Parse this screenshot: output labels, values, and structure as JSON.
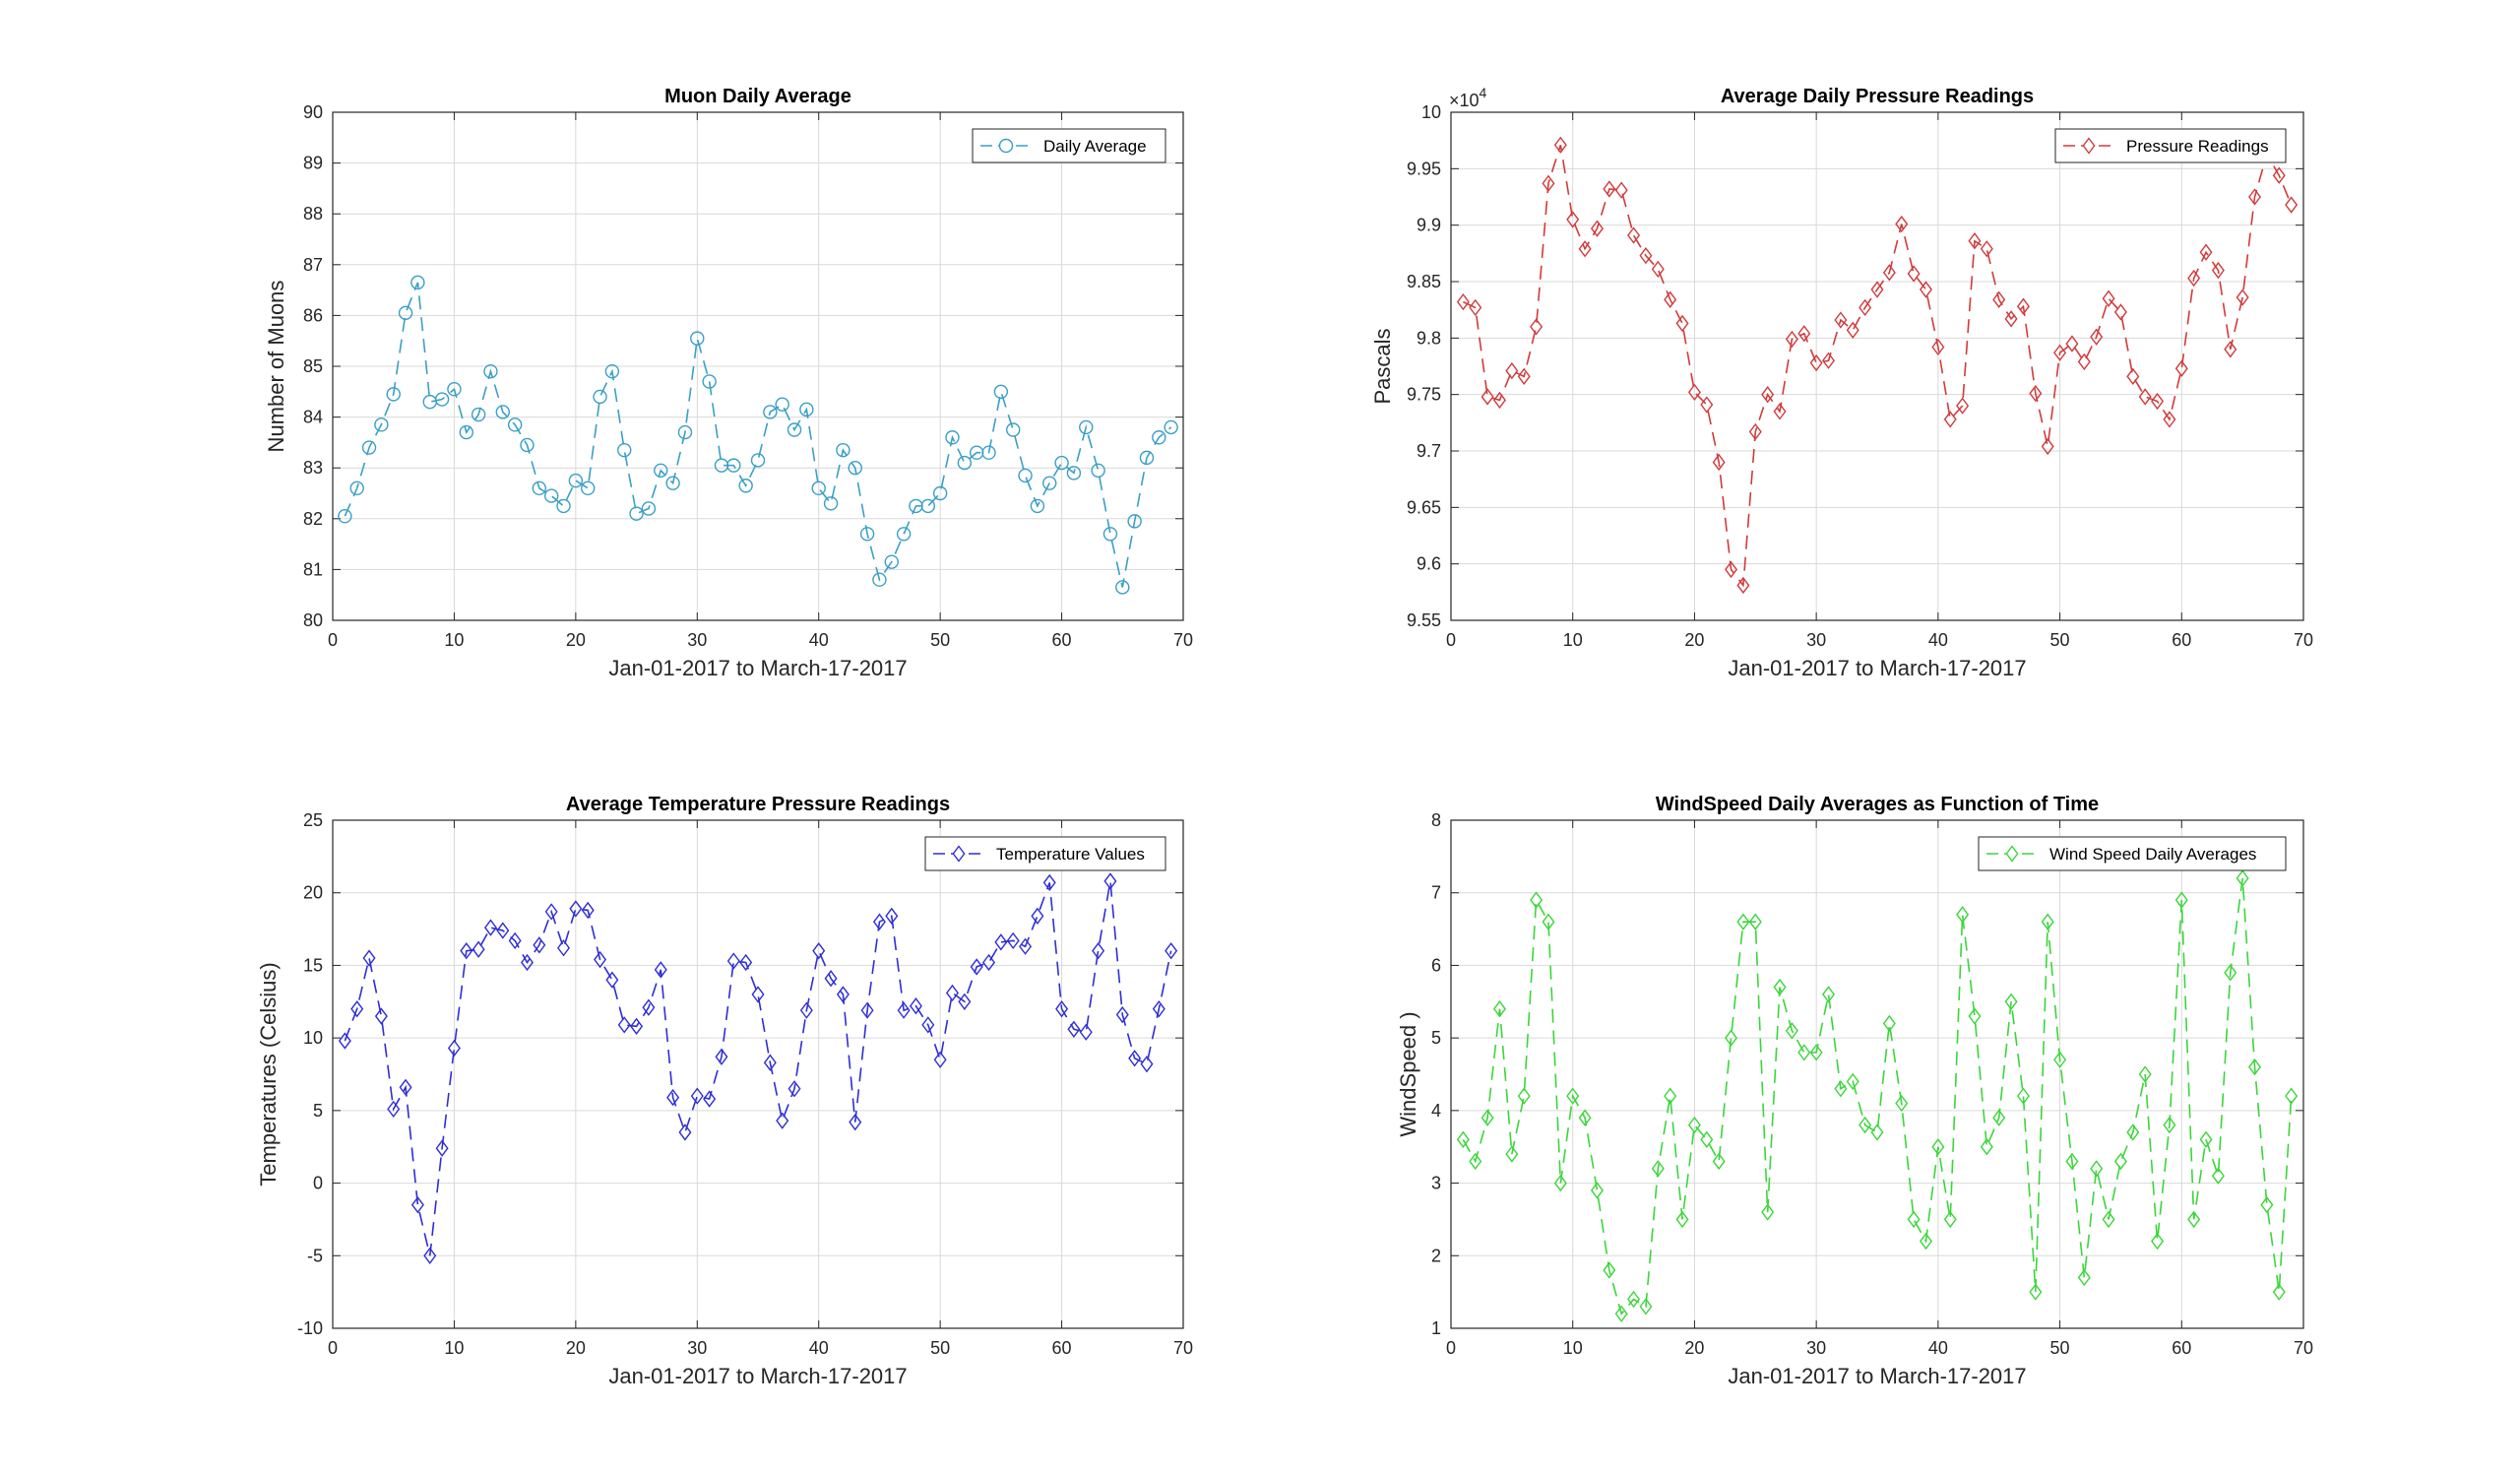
{
  "chart_data": [
    {
      "type": "line",
      "title": "Muon Daily Average",
      "xlabel": "Jan-01-2017 to March-17-2017",
      "ylabel": "Number of Muons",
      "xlim": [
        0,
        70
      ],
      "ylim": [
        80,
        90
      ],
      "xticks": [
        0,
        10,
        20,
        30,
        40,
        50,
        60,
        70
      ],
      "yticks": [
        80,
        81,
        82,
        83,
        84,
        85,
        86,
        87,
        88,
        89,
        90
      ],
      "grid": true,
      "legend_position": "top-right",
      "marker": "circle",
      "color": "#3a9fc6",
      "series": [
        {
          "name": "Daily Average",
          "x": [
            1,
            2,
            3,
            4,
            5,
            6,
            7,
            8,
            9,
            10,
            11,
            12,
            13,
            14,
            15,
            16,
            17,
            18,
            19,
            20,
            21,
            22,
            23,
            24,
            25,
            26,
            27,
            28,
            29,
            30,
            31,
            32,
            33,
            34,
            35,
            36,
            37,
            38,
            39,
            40,
            41,
            42,
            43,
            44,
            45,
            46,
            47,
            48,
            49,
            50,
            51,
            52,
            53,
            54,
            55,
            56,
            57,
            58,
            59,
            60,
            61,
            62,
            63,
            64,
            65,
            66,
            67,
            68,
            69
          ],
          "values": [
            82.05,
            82.6,
            83.4,
            83.85,
            84.45,
            86.05,
            86.65,
            84.3,
            84.35,
            84.55,
            83.7,
            84.05,
            84.9,
            84.1,
            83.85,
            83.45,
            82.6,
            82.45,
            82.25,
            82.75,
            82.6,
            84.4,
            84.9,
            83.35,
            82.1,
            82.2,
            82.95,
            82.7,
            83.7,
            85.55,
            84.7,
            83.05,
            83.05,
            82.65,
            83.15,
            84.1,
            84.25,
            83.75,
            84.15,
            82.6,
            82.3,
            83.35,
            83.0,
            81.7,
            80.8,
            81.15,
            81.7,
            82.25,
            82.25,
            82.5,
            83.6,
            83.1,
            83.3,
            83.3,
            84.5,
            83.75,
            82.85,
            82.25,
            82.7,
            83.1,
            82.9,
            83.8,
            82.95,
            81.7,
            80.65,
            81.95,
            83.2,
            83.6,
            83.8
          ]
        }
      ]
    },
    {
      "type": "line",
      "title": "Average Daily Pressure Readings",
      "xlabel": "Jan-01-2017 to March-17-2017",
      "ylabel": "Pascals",
      "exponent_label": "×10",
      "exponent_power": "4",
      "xlim": [
        0,
        70
      ],
      "ylim": [
        9.55,
        10
      ],
      "xticks": [
        0,
        10,
        20,
        30,
        40,
        50,
        60,
        70
      ],
      "yticks": [
        "9.55",
        "9.6",
        "9.65",
        "9.7",
        "9.75",
        "9.8",
        "9.85",
        "9.9",
        "9.95",
        "10"
      ],
      "grid": true,
      "legend_position": "top-right",
      "marker": "diamond",
      "color": "#d13a3a",
      "series": [
        {
          "name": "Pressure Readings",
          "x": [
            1,
            2,
            3,
            4,
            5,
            6,
            7,
            8,
            9,
            10,
            11,
            12,
            13,
            14,
            15,
            16,
            17,
            18,
            19,
            20,
            21,
            22,
            23,
            24,
            25,
            26,
            27,
            28,
            29,
            30,
            31,
            32,
            33,
            34,
            35,
            36,
            37,
            38,
            39,
            40,
            41,
            42,
            43,
            44,
            45,
            46,
            47,
            48,
            49,
            50,
            51,
            52,
            53,
            54,
            55,
            56,
            57,
            58,
            59,
            60,
            61,
            62,
            63,
            64,
            65,
            66,
            67,
            68,
            69
          ],
          "values": [
            9.832,
            9.827,
            9.748,
            9.745,
            9.771,
            9.766,
            9.81,
            9.937,
            9.971,
            9.905,
            9.879,
            9.897,
            9.932,
            9.931,
            9.891,
            9.873,
            9.861,
            9.834,
            9.813,
            9.752,
            9.741,
            9.69,
            9.595,
            9.581,
            9.717,
            9.75,
            9.735,
            9.799,
            9.804,
            9.778,
            9.78,
            9.816,
            9.807,
            9.827,
            9.843,
            9.858,
            9.901,
            9.857,
            9.843,
            9.792,
            9.728,
            9.74,
            9.886,
            9.879,
            9.834,
            9.817,
            9.828,
            9.751,
            9.704,
            9.787,
            9.795,
            9.779,
            9.801,
            9.835,
            9.823,
            9.766,
            9.748,
            9.744,
            9.728,
            9.773,
            9.853,
            9.876,
            9.86,
            9.79,
            9.836,
            9.925,
            9.963,
            9.944,
            9.918
          ]
        }
      ]
    },
    {
      "type": "line",
      "title": "Average Temperature Pressure Readings",
      "xlabel": "Jan-01-2017 to March-17-2017",
      "ylabel": "Temperatures (Celsius)",
      "xlim": [
        0,
        70
      ],
      "ylim": [
        -10,
        25
      ],
      "xticks": [
        0,
        10,
        20,
        30,
        40,
        50,
        60,
        70
      ],
      "yticks": [
        -10,
        -5,
        0,
        5,
        10,
        15,
        20,
        25
      ],
      "grid": true,
      "legend_position": "top-right",
      "marker": "diamond",
      "color": "#2e2ed6",
      "series": [
        {
          "name": "Temperature Values",
          "x": [
            1,
            2,
            3,
            4,
            5,
            6,
            7,
            8,
            9,
            10,
            11,
            12,
            13,
            14,
            15,
            16,
            17,
            18,
            19,
            20,
            21,
            22,
            23,
            24,
            25,
            26,
            27,
            28,
            29,
            30,
            31,
            32,
            33,
            34,
            35,
            36,
            37,
            38,
            39,
            40,
            41,
            42,
            43,
            44,
            45,
            46,
            47,
            48,
            49,
            50,
            51,
            52,
            53,
            54,
            55,
            56,
            57,
            58,
            59,
            60,
            61,
            62,
            63,
            64,
            65,
            66,
            67,
            68,
            69
          ],
          "values": [
            9.8,
            12,
            15.5,
            11.5,
            5.1,
            6.6,
            -1.5,
            -5,
            2.4,
            9.3,
            16,
            16.1,
            17.6,
            17.4,
            16.7,
            15.2,
            16.4,
            18.7,
            16.2,
            18.9,
            18.8,
            15.4,
            14,
            10.9,
            10.8,
            12.1,
            14.7,
            5.9,
            3.5,
            6,
            5.8,
            8.7,
            15.3,
            15.2,
            13,
            8.3,
            4.3,
            6.5,
            11.9,
            16,
            14.1,
            13,
            4.2,
            11.9,
            18,
            18.4,
            11.9,
            12.2,
            10.9,
            8.5,
            13.1,
            12.5,
            14.9,
            15.2,
            16.6,
            16.7,
            16.3,
            18.4,
            20.7,
            12,
            10.6,
            10.4,
            16,
            20.8,
            11.6,
            8.6,
            8.2,
            12,
            16
          ]
        }
      ]
    },
    {
      "type": "line",
      "title": "WindSpeed Daily Averages as Function of Time",
      "xlabel": "Jan-01-2017 to March-17-2017",
      "ylabel": "WindSpeed )",
      "xlim": [
        0,
        70
      ],
      "ylim": [
        1,
        8
      ],
      "xticks": [
        0,
        10,
        20,
        30,
        40,
        50,
        60,
        70
      ],
      "yticks": [
        1,
        2,
        3,
        4,
        5,
        6,
        7,
        8
      ],
      "grid": true,
      "legend_position": "top-right",
      "marker": "diamond",
      "color": "#3ad63a",
      "series": [
        {
          "name": "Wind Speed Daily Averages",
          "x": [
            1,
            2,
            3,
            4,
            5,
            6,
            7,
            8,
            9,
            10,
            11,
            12,
            13,
            14,
            15,
            16,
            17,
            18,
            19,
            20,
            21,
            22,
            23,
            24,
            25,
            26,
            27,
            28,
            29,
            30,
            31,
            32,
            33,
            34,
            35,
            36,
            37,
            38,
            39,
            40,
            41,
            42,
            43,
            44,
            45,
            46,
            47,
            48,
            49,
            50,
            51,
            52,
            53,
            54,
            55,
            56,
            57,
            58,
            59,
            60,
            61,
            62,
            63,
            64,
            65,
            66,
            67,
            68,
            69
          ],
          "values": [
            3.6,
            3.3,
            3.9,
            5.4,
            3.4,
            4.2,
            6.9,
            6.6,
            3,
            4.2,
            3.9,
            2.9,
            1.8,
            1.2,
            1.4,
            1.3,
            3.2,
            4.2,
            2.5,
            3.8,
            3.6,
            3.3,
            5,
            6.6,
            6.6,
            2.6,
            5.7,
            5.1,
            4.8,
            4.8,
            5.6,
            4.3,
            4.4,
            3.8,
            3.7,
            5.2,
            4.1,
            2.5,
            2.2,
            3.5,
            2.5,
            6.7,
            5.3,
            3.5,
            3.9,
            5.5,
            4.2,
            1.5,
            6.6,
            4.7,
            3.3,
            1.7,
            3.2,
            2.5,
            3.3,
            3.7,
            4.5,
            2.2,
            3.8,
            6.9,
            2.5,
            3.6,
            3.1,
            5.9,
            7.2,
            4.6,
            2.7,
            1.5,
            4.2
          ]
        }
      ]
    }
  ]
}
